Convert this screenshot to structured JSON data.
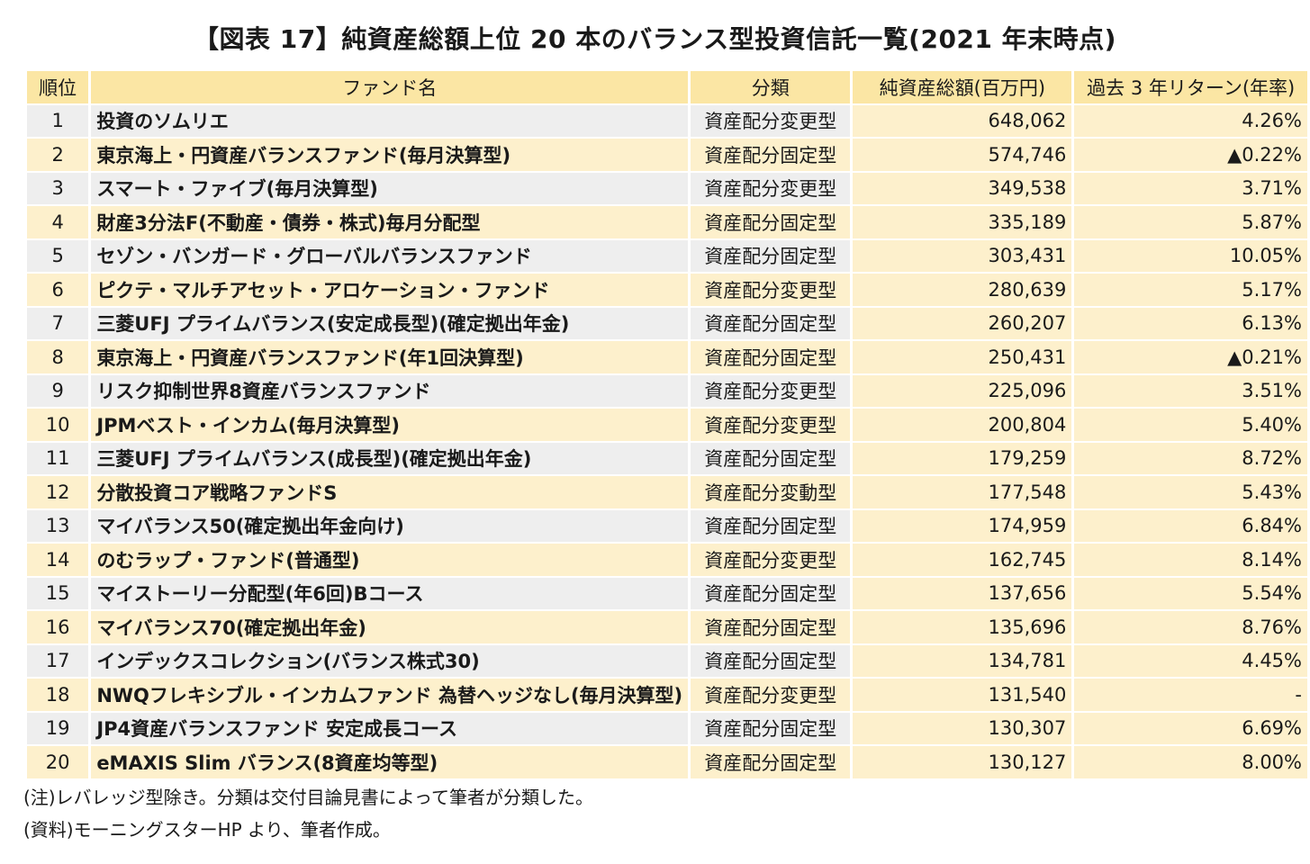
{
  "title": "【図表 17】純資産総額上位 20 本のバランス型投資信託一覧(2021 年末時点)",
  "headers": {
    "rank": "順位",
    "name": "ファンド名",
    "category": "分類",
    "aum": "純資産総額(百万円)",
    "return": "過去 3 年リターン(年率)"
  },
  "rows": [
    {
      "rank": "1",
      "name": "投資のソムリエ",
      "category": "資産配分変更型",
      "aum": "648,062",
      "return": "4.26%"
    },
    {
      "rank": "2",
      "name": "東京海上・円資産バランスファンド(毎月決算型)",
      "category": "資産配分固定型",
      "aum": "574,746",
      "return": "▲0.22%"
    },
    {
      "rank": "3",
      "name": "スマート・ファイブ(毎月決算型)",
      "category": "資産配分変更型",
      "aum": "349,538",
      "return": "3.71%"
    },
    {
      "rank": "4",
      "name": "財産3分法F(不動産・債券・株式)毎月分配型",
      "category": "資産配分固定型",
      "aum": "335,189",
      "return": "5.87%"
    },
    {
      "rank": "5",
      "name": "セゾン・バンガード・グローバルバランスファンド",
      "category": "資産配分固定型",
      "aum": "303,431",
      "return": "10.05%"
    },
    {
      "rank": "6",
      "name": "ピクテ・マルチアセット・アロケーション・ファンド",
      "category": "資産配分変更型",
      "aum": "280,639",
      "return": "5.17%"
    },
    {
      "rank": "7",
      "name": "三菱UFJ プライムバランス(安定成長型)(確定拠出年金)",
      "category": "資産配分固定型",
      "aum": "260,207",
      "return": "6.13%"
    },
    {
      "rank": "8",
      "name": "東京海上・円資産バランスファンド(年1回決算型)",
      "category": "資産配分固定型",
      "aum": "250,431",
      "return": "▲0.21%"
    },
    {
      "rank": "9",
      "name": "リスク抑制世界8資産バランスファンド",
      "category": "資産配分変更型",
      "aum": "225,096",
      "return": "3.51%"
    },
    {
      "rank": "10",
      "name": "JPMベスト・インカム(毎月決算型)",
      "category": "資産配分変更型",
      "aum": "200,804",
      "return": "5.40%"
    },
    {
      "rank": "11",
      "name": "三菱UFJ プライムバランス(成長型)(確定拠出年金)",
      "category": "資産配分固定型",
      "aum": "179,259",
      "return": "8.72%"
    },
    {
      "rank": "12",
      "name": "分散投資コア戦略ファンドS",
      "category": "資産配分変動型",
      "aum": "177,548",
      "return": "5.43%"
    },
    {
      "rank": "13",
      "name": "マイバランス50(確定拠出年金向け)",
      "category": "資産配分固定型",
      "aum": "174,959",
      "return": "6.84%"
    },
    {
      "rank": "14",
      "name": "のむラップ・ファンド(普通型)",
      "category": "資産配分変更型",
      "aum": "162,745",
      "return": "8.14%"
    },
    {
      "rank": "15",
      "name": "マイストーリー分配型(年6回)Bコース",
      "category": "資産配分固定型",
      "aum": "137,656",
      "return": "5.54%"
    },
    {
      "rank": "16",
      "name": "マイバランス70(確定拠出年金)",
      "category": "資産配分固定型",
      "aum": "135,696",
      "return": "8.76%"
    },
    {
      "rank": "17",
      "name": "インデックスコレクション(バランス株式30)",
      "category": "資産配分固定型",
      "aum": "134,781",
      "return": "4.45%"
    },
    {
      "rank": "18",
      "name": "NWQフレキシブル・インカムファンド 為替ヘッジなし(毎月決算型)",
      "category": "資産配分変更型",
      "aum": "131,540",
      "return": "-"
    },
    {
      "rank": "19",
      "name": "JP4資産バランスファンド 安定成長コース",
      "category": "資産配分固定型",
      "aum": "130,307",
      "return": "6.69%"
    },
    {
      "rank": "20",
      "name": "eMAXIS Slim バランス(8資産均等型)",
      "category": "資産配分固定型",
      "aum": "130,127",
      "return": "8.00%"
    }
  ],
  "notes": {
    "note1": "(注)レバレッジ型除き。分類は交付目論見書によって筆者が分類した。",
    "note2": "(資料)モーニングスターHP より、筆者作成。"
  },
  "colors": {
    "header_fill": "#fbe6a4",
    "light_fill": "#fdf0cc",
    "gray_fill": "#eeeeee"
  }
}
